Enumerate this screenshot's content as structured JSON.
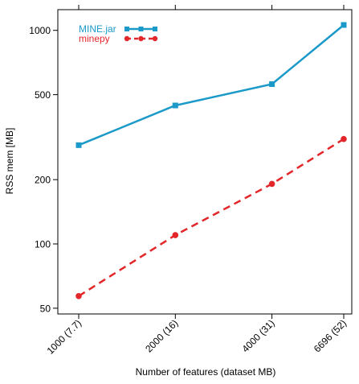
{
  "chart_data": {
    "type": "line",
    "title": "",
    "xlabel": "Number of features (dataset MB)",
    "ylabel": "RSS mem [MB]",
    "y_scale": "log",
    "ylim": [
      47,
      1250
    ],
    "grid": false,
    "legend_position": "top-left",
    "categories": [
      "1000 (7.7)",
      "2000 (16)",
      "4000 (31)",
      "6696 (52)"
    ],
    "x_positions": [
      1000,
      2000,
      4000,
      6696
    ],
    "y_ticks": [
      50,
      100,
      200,
      500,
      1000
    ],
    "y_tick_labels": [
      "50",
      "100",
      "200",
      "500",
      "1000"
    ],
    "series": [
      {
        "name": "MINE.jar",
        "values": [
          290,
          445,
          560,
          1060
        ],
        "color": "#1b9ac9",
        "line_style": "solid",
        "marker": "square"
      },
      {
        "name": "minepy",
        "values": [
          57,
          110,
          191,
          310
        ],
        "color": "#e3262a",
        "line_style": "dashed",
        "marker": "circle"
      }
    ]
  }
}
